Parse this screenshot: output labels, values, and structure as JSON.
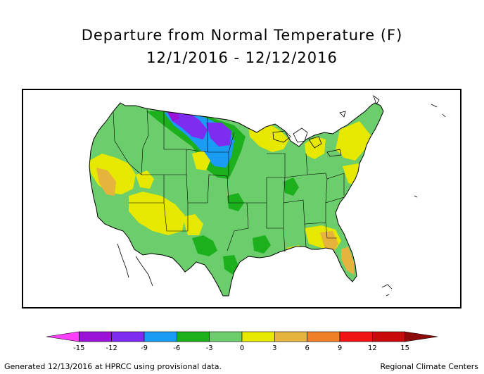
{
  "title": "Departure from Normal Temperature (F)",
  "date_range": "12/1/2016 - 12/12/2016",
  "legend": {
    "bins": [
      {
        "from": -18,
        "to": -15,
        "color": "#ff40ff"
      },
      {
        "from": -15,
        "to": -12,
        "color": "#9a14d8"
      },
      {
        "from": -12,
        "to": -9,
        "color": "#7d2cf0"
      },
      {
        "from": -9,
        "to": -6,
        "color": "#1a9cf4"
      },
      {
        "from": -6,
        "to": -3,
        "color": "#1db01d"
      },
      {
        "from": -3,
        "to": 0,
        "color": "#6bcd6b"
      },
      {
        "from": 0,
        "to": 3,
        "color": "#e6e800"
      },
      {
        "from": 3,
        "to": 6,
        "color": "#e6b43c"
      },
      {
        "from": 6,
        "to": 9,
        "color": "#f08028"
      },
      {
        "from": 9,
        "to": 12,
        "color": "#f01414"
      },
      {
        "from": 12,
        "to": 15,
        "color": "#c80a0a"
      },
      {
        "from": 15,
        "to": 18,
        "color": "#8c0a0a"
      }
    ],
    "tick_values": [
      -15,
      -12,
      -9,
      -6,
      -3,
      0,
      3,
      6,
      9,
      12,
      15
    ],
    "tick_labels": [
      "-15",
      "-12",
      "-9",
      "-6",
      "-3",
      "0",
      "3",
      "6",
      "9",
      "12",
      "15"
    ]
  },
  "footer_left": "Generated 12/13/2016 at HPRCC using provisional data.",
  "footer_right": "Regional Climate Centers"
}
